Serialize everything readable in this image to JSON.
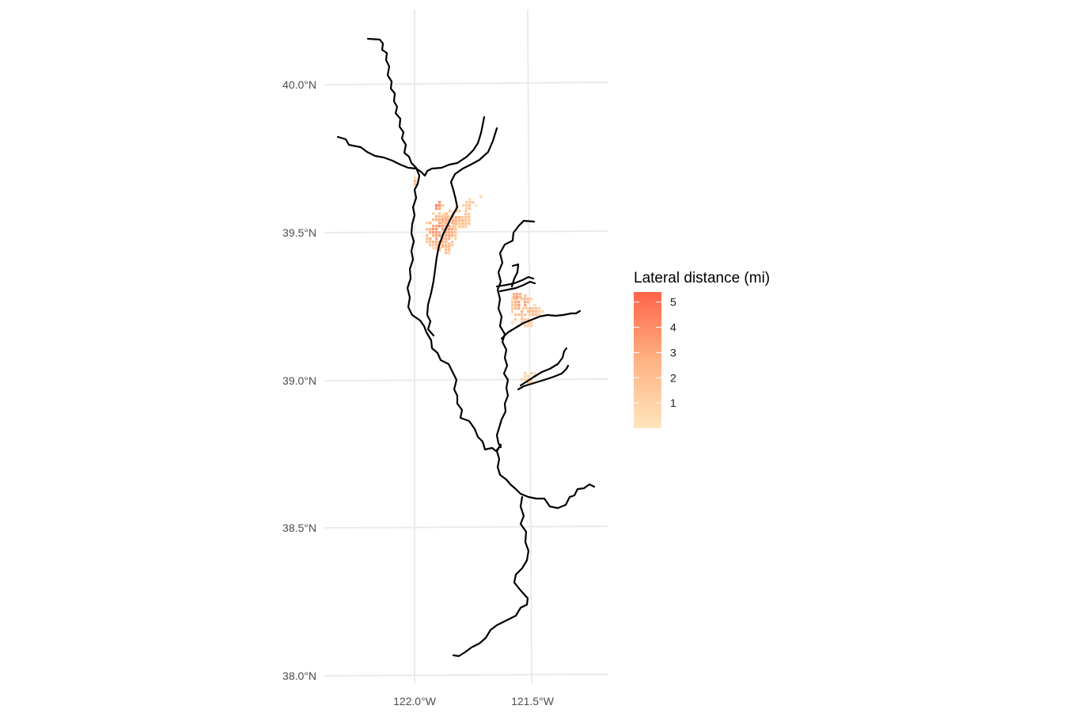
{
  "map": {
    "x_labels": [
      "122.0°W",
      "121.5°W"
    ],
    "y_labels": [
      "40.0°N",
      "39.5°N",
      "39.0°N",
      "38.5°N",
      "38.0°N"
    ]
  },
  "legend": {
    "title": "Lateral distance (mi)",
    "ticks": [
      "5",
      "4",
      "3",
      "2",
      "1"
    ],
    "range": [
      0,
      5.4
    ],
    "colors": {
      "low": "#ffe5bd",
      "mid": "#ffb283",
      "high": "#ff6347"
    }
  },
  "colors": {
    "rivers": "#000000",
    "grid": "#ebebeb",
    "background": "#ffffff"
  }
}
